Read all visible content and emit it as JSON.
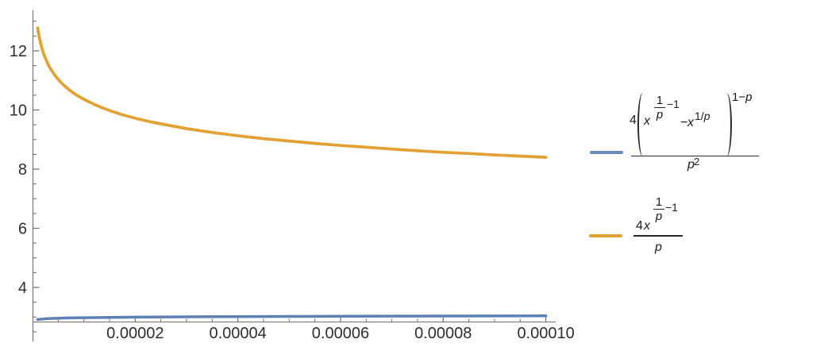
{
  "figure": {
    "background": "#ffffff",
    "kind": "mathematica-style line plot with math-expression legend"
  },
  "chart_data": {
    "type": "line",
    "title": "",
    "xlabel": "",
    "ylabel": "",
    "xlim": [
      0,
      0.0001
    ],
    "ylim_visible": [
      2.84,
      13.37
    ],
    "grid": false,
    "legend_position": "right",
    "axes_color": "#6f6f6f",
    "label_color": "#2e2e2e",
    "x_ticks": {
      "values": [
        2e-05,
        4e-05,
        6e-05,
        8e-05,
        0.0001
      ],
      "labels": [
        "0.00002",
        "0.00004",
        "0.00006",
        "0.00008",
        "0.00010"
      ],
      "minor_step": 5e-06
    },
    "y_ticks": {
      "values": [
        4,
        6,
        8,
        10,
        12
      ],
      "labels": [
        "4",
        "6",
        "8",
        "10",
        "12"
      ],
      "minor_step": 0.5,
      "minor_range": [
        2.5,
        13
      ]
    },
    "series": [
      {
        "name": "4(x^(1/p-1) - x^(1/p))^(1-p) / p^2",
        "color": "#5e81b5",
        "stroke_width": 3.5,
        "x": [
          1e-06,
          2e-06,
          3e-06,
          5e-06,
          8e-06,
          1e-05,
          1.5e-05,
          2e-05,
          3e-05,
          4e-05,
          5e-05,
          6e-05,
          7e-05,
          8e-05,
          9e-05,
          0.0001
        ],
        "y": [
          2.916,
          2.934,
          2.945,
          2.959,
          2.971,
          2.977,
          2.989,
          2.996,
          3.007,
          3.015,
          3.021,
          3.026,
          3.03,
          3.034,
          3.037,
          3.04
        ]
      },
      {
        "name": "4x^(1/p-1) / p",
        "color": "#e3a134",
        "stroke_width": 3.7,
        "x": [
          1e-06,
          1.1e-06,
          1.2e-06,
          1.35e-06,
          1.5e-06,
          1.75e-06,
          2e-06,
          2.25e-06,
          2.5e-06,
          2.75e-06,
          3e-06,
          3.5e-06,
          4e-06,
          4.5e-06,
          5e-06,
          6e-06,
          7e-06,
          8e-06,
          9e-06,
          1e-05,
          1.2e-05,
          1.35e-05,
          1.5e-05,
          1.75e-05,
          2e-05,
          2.25e-05,
          2.5e-05,
          2.75e-05,
          3e-05,
          3.5e-05,
          4e-05,
          4.5e-05,
          5e-05,
          5.5e-05,
          6e-05,
          6.5e-05,
          7e-05,
          7.5e-05,
          8e-05,
          8.5e-05,
          9e-05,
          9.5e-05,
          0.0001
        ],
        "y": [
          12.77,
          12.66,
          12.56,
          12.43,
          12.31,
          12.14,
          11.99,
          11.86,
          11.75,
          11.65,
          11.55,
          11.39,
          11.26,
          11.14,
          11.03,
          10.85,
          10.7,
          10.57,
          10.46,
          10.36,
          10.19,
          10.08,
          9.98,
          9.84,
          9.72,
          9.62,
          9.53,
          9.45,
          9.37,
          9.24,
          9.13,
          9.03,
          8.95,
          8.87,
          8.8,
          8.74,
          8.68,
          8.62,
          8.57,
          8.53,
          8.48,
          8.44,
          8.4
        ]
      }
    ]
  },
  "legend": {
    "items": [
      {
        "swatch_color": "#6b8cc3",
        "formula": "4(x^(1/p-1) - x^(1/p))^(1-p) / p^2",
        "tokens": {
          "coef": "4",
          "base_x": "x",
          "sf_num": "1",
          "sf_den": "p",
          "sf_after": "−1",
          "mid_minus": "−",
          "mid_x": "x",
          "sup_pre": "1/",
          "sup_p": "p",
          "outer_pre": "1−",
          "outer_p": "p",
          "den_p": "p",
          "den_exp": "2"
        }
      },
      {
        "swatch_color": "#e3a134",
        "formula": "4x^(1/p-1) / p",
        "tokens": {
          "coef": "4",
          "base_x": "x",
          "sf_num": "1",
          "sf_den": "p",
          "sf_after": "−1",
          "den_p": "p"
        }
      }
    ]
  }
}
